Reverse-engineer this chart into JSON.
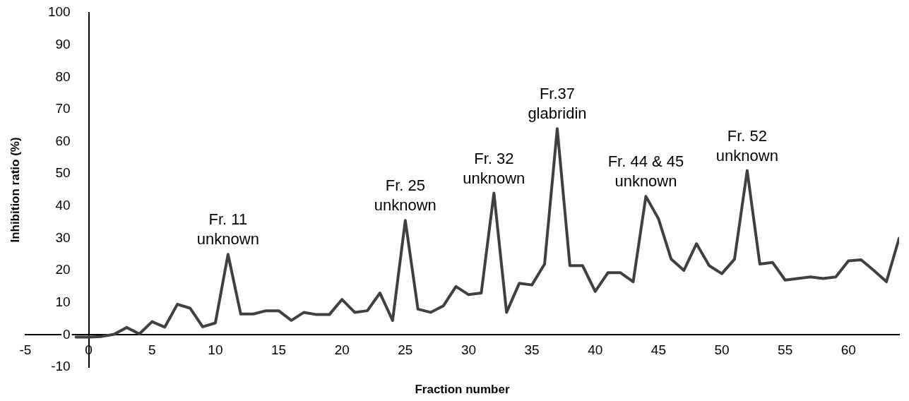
{
  "chart_data": {
    "type": "line",
    "xlabel": "Fraction number",
    "ylabel": "Inhibition ratio (%)",
    "x": [
      -1,
      0,
      1,
      2,
      3,
      4,
      5,
      6,
      7,
      8,
      9,
      10,
      11,
      12,
      13,
      14,
      15,
      16,
      17,
      18,
      19,
      20,
      21,
      22,
      23,
      24,
      25,
      26,
      27,
      28,
      29,
      30,
      31,
      32,
      33,
      34,
      35,
      36,
      37,
      38,
      39,
      40,
      41,
      42,
      43,
      44,
      45,
      46,
      47,
      48,
      49,
      50,
      51,
      52,
      53,
      54,
      55,
      56,
      57,
      58,
      59,
      60,
      61,
      62,
      63,
      64
    ],
    "series": [
      {
        "color": "#404040",
        "values": [
          -0.7,
          -0.7,
          -0.5,
          0.2,
          2.3,
          0.3,
          4.1,
          2.4,
          9.5,
          8.3,
          2.5,
          3.7,
          25,
          6.5,
          6.5,
          7.5,
          7.5,
          4.5,
          7,
          6.3,
          6.3,
          11,
          7,
          7.5,
          13,
          4.5,
          35.5,
          8,
          7,
          9,
          15,
          12.5,
          13,
          44,
          7,
          16,
          15.5,
          22,
          64,
          21.5,
          21.5,
          13.5,
          19.3,
          19.3,
          16.5,
          43,
          36,
          23.5,
          20,
          28.3,
          21.5,
          19,
          23.5,
          51,
          22,
          22.5,
          17,
          17.5,
          18,
          17.5,
          18,
          23,
          23.3,
          20,
          16.5,
          30
        ]
      }
    ],
    "xlim": [
      -5,
      64
    ],
    "xticks": [
      -5,
      0,
      5,
      10,
      15,
      20,
      25,
      30,
      35,
      40,
      45,
      50,
      55,
      60
    ],
    "ylim": [
      -10,
      100
    ],
    "yticks": [
      -10,
      0,
      10,
      20,
      30,
      40,
      50,
      60,
      70,
      80,
      90,
      100
    ],
    "grid": false,
    "legend": false,
    "marker": "none",
    "line_style": "solid",
    "annotations": [
      {
        "text": "Fr. 11\nunknown",
        "x": 11,
        "y": 25
      },
      {
        "text": "Fr. 25\nunknown",
        "x": 25,
        "y": 35.5
      },
      {
        "text": "Fr. 32\nunknown",
        "x": 32,
        "y": 44
      },
      {
        "text": "Fr.37\nglabridin",
        "x": 37,
        "y": 64
      },
      {
        "text": "Fr. 44 & 45\nunknown",
        "x": 44,
        "y": 43
      },
      {
        "text": "Fr. 52\nunknown",
        "x": 52,
        "y": 51
      }
    ]
  }
}
